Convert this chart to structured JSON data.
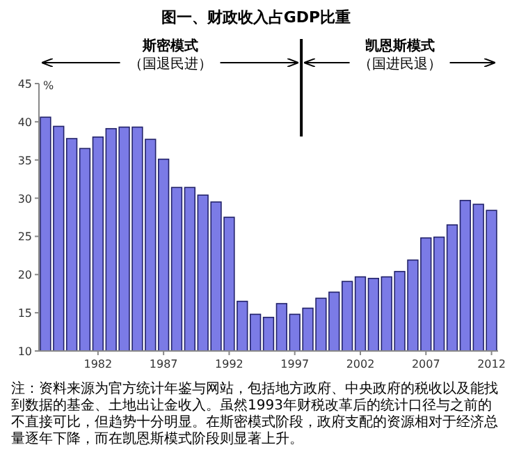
{
  "chart_data": {
    "type": "bar",
    "title": "图一、财政收入占GDP比重",
    "ylabel": "%",
    "x": [
      1978,
      1979,
      1980,
      1981,
      1982,
      1983,
      1984,
      1985,
      1986,
      1987,
      1988,
      1989,
      1990,
      1991,
      1992,
      1993,
      1994,
      1995,
      1996,
      1997,
      1998,
      1999,
      2000,
      2001,
      2002,
      2003,
      2004,
      2005,
      2006,
      2007,
      2008,
      2009,
      2010,
      2011,
      2012
    ],
    "values": [
      40.6,
      39.4,
      37.8,
      36.5,
      38,
      39.1,
      39.3,
      39.3,
      37.7,
      35.1,
      31.4,
      31.4,
      30.4,
      29.5,
      27.5,
      16.5,
      14.8,
      14.4,
      16.2,
      14.8,
      15.6,
      16.9,
      17.7,
      19.1,
      19.7,
      19.5,
      19.7,
      20.4,
      21.9,
      24.8,
      24.9,
      26.5,
      29.7,
      29.2,
      28.4
    ],
    "color": "#7b7be6",
    "xlim": [
      1977.5,
      2012.5
    ],
    "xticks": [
      1982,
      1987,
      1992,
      1997,
      2002,
      2007,
      2012
    ],
    "ylim": [
      10,
      45
    ],
    "yticks": [
      10,
      15,
      20,
      25,
      30,
      35,
      40,
      45
    ],
    "grid": false,
    "ref_lines": [
      {
        "axis": "x",
        "value": 1997.5,
        "label": null,
        "color": "#000000"
      }
    ],
    "annotations": [
      "斯密模式",
      "（国退民进）",
      "凯恩斯模式",
      "（国进民退）",
      "注：资料来源为官方统计年鉴与网站，包括地方政府、中央政府的税收以及能找到数据的基金、土地出让金收入。虽然1993年财税改革后的统计口径与之前的不直接可比，但趋势十分明显。在斯密模式阶段，政府支配的资源相对于经济总量逐年下降，而在凯恩斯模式阶段则显著上升。"
    ]
  }
}
